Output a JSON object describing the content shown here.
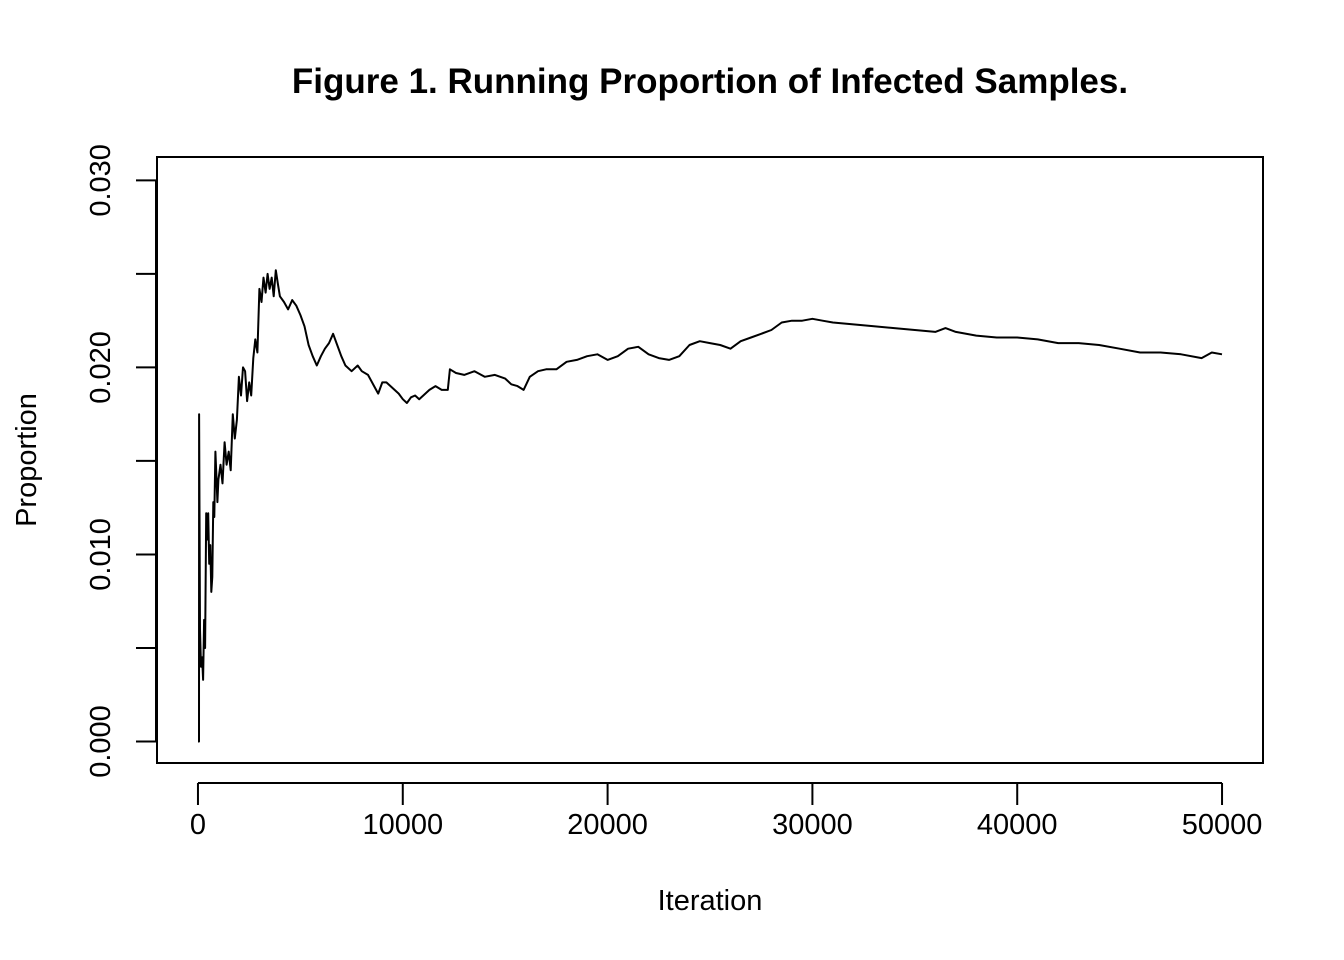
{
  "chart_data": {
    "type": "line",
    "title": "Figure 1. Running Proportion of Infected Samples.",
    "xlabel": "Iteration",
    "ylabel": "Proportion",
    "xlim": [
      -2000,
      52000
    ],
    "ylim": [
      -0.00115,
      0.03125
    ],
    "x_ticks": [
      0,
      10000,
      20000,
      30000,
      40000,
      50000
    ],
    "x_tick_labels": [
      "0",
      "10000",
      "20000",
      "30000",
      "40000",
      "50000"
    ],
    "y_ticks": [
      0.0,
      0.005,
      0.01,
      0.015,
      0.02,
      0.025,
      0.03
    ],
    "y_tick_labels": [
      "0.000",
      "",
      "0.010",
      "",
      "0.020",
      "",
      "0.030"
    ],
    "grid": false,
    "legend": "none",
    "line_color": "#000000",
    "series": [
      {
        "x": [
          1,
          50,
          55,
          100,
          150,
          200,
          250,
          300,
          350,
          400,
          450,
          500,
          550,
          600,
          650,
          700,
          750,
          800,
          850,
          900,
          950,
          1000,
          1100,
          1200,
          1300,
          1400,
          1500,
          1600,
          1700,
          1800,
          1900,
          2000,
          2100,
          2200,
          2300,
          2400,
          2500,
          2600,
          2700,
          2800,
          2900,
          3000,
          3100,
          3200,
          3300,
          3400,
          3500,
          3600,
          3700,
          3800,
          3900,
          4000,
          4200,
          4400,
          4600,
          4800,
          5000,
          5200,
          5400,
          5600,
          5800,
          6000,
          6200,
          6400,
          6600,
          6800,
          7000,
          7200,
          7500,
          7800,
          8000,
          8300,
          8600,
          8800,
          9000,
          9200,
          9400,
          9600,
          9800,
          10000,
          10200,
          10400,
          10600,
          10800,
          11000,
          11300,
          11600,
          11900,
          12200,
          12300,
          12600,
          13000,
          13500,
          14000,
          14500,
          15000,
          15300,
          15600,
          15900,
          16200,
          16600,
          17000,
          17500,
          18000,
          18500,
          19000,
          19500,
          20000,
          20500,
          21000,
          21500,
          22000,
          22500,
          23000,
          23500,
          24000,
          24500,
          25000,
          25500,
          26000,
          26500,
          27000,
          27500,
          28000,
          28500,
          29000,
          29500,
          30000,
          30500,
          31000,
          32000,
          33000,
          34000,
          35000,
          36000,
          36500,
          37000,
          38000,
          39000,
          40000,
          41000,
          42000,
          43000,
          44000,
          45000,
          46000,
          47000,
          48000,
          49000,
          49500,
          50000
        ],
        "values": [
          0.0,
          0.0,
          0.0175,
          0.006,
          0.004,
          0.0045,
          0.0033,
          0.0065,
          0.005,
          0.0122,
          0.0108,
          0.0122,
          0.0095,
          0.0105,
          0.008,
          0.0088,
          0.0128,
          0.012,
          0.0155,
          0.0142,
          0.0128,
          0.014,
          0.0148,
          0.0138,
          0.016,
          0.0148,
          0.0155,
          0.0145,
          0.0175,
          0.0162,
          0.0172,
          0.0195,
          0.0185,
          0.02,
          0.0198,
          0.0182,
          0.0192,
          0.0185,
          0.0205,
          0.0215,
          0.0208,
          0.0242,
          0.0235,
          0.0248,
          0.024,
          0.025,
          0.0242,
          0.0248,
          0.0238,
          0.0252,
          0.0245,
          0.0238,
          0.0235,
          0.0231,
          0.0236,
          0.0233,
          0.0228,
          0.0222,
          0.0212,
          0.0206,
          0.0201,
          0.0206,
          0.021,
          0.0213,
          0.0218,
          0.0212,
          0.0206,
          0.0201,
          0.0198,
          0.0201,
          0.0198,
          0.0196,
          0.019,
          0.0186,
          0.0192,
          0.0192,
          0.019,
          0.0188,
          0.0186,
          0.0183,
          0.0181,
          0.0184,
          0.0185,
          0.0183,
          0.0185,
          0.0188,
          0.019,
          0.0188,
          0.0188,
          0.0199,
          0.0197,
          0.0196,
          0.0198,
          0.0195,
          0.0196,
          0.0194,
          0.0191,
          0.019,
          0.0188,
          0.0195,
          0.0198,
          0.0199,
          0.0199,
          0.0203,
          0.0204,
          0.0206,
          0.0207,
          0.0204,
          0.0206,
          0.021,
          0.0211,
          0.0207,
          0.0205,
          0.0204,
          0.0206,
          0.0212,
          0.0214,
          0.0213,
          0.0212,
          0.021,
          0.0214,
          0.0216,
          0.0218,
          0.022,
          0.0224,
          0.0225,
          0.0225,
          0.0226,
          0.0225,
          0.0224,
          0.0223,
          0.0222,
          0.0221,
          0.022,
          0.0219,
          0.0221,
          0.0219,
          0.0217,
          0.0216,
          0.0216,
          0.0215,
          0.0213,
          0.0213,
          0.0212,
          0.021,
          0.0208,
          0.0208,
          0.0207,
          0.0205,
          0.0208,
          0.0207
        ]
      }
    ]
  }
}
